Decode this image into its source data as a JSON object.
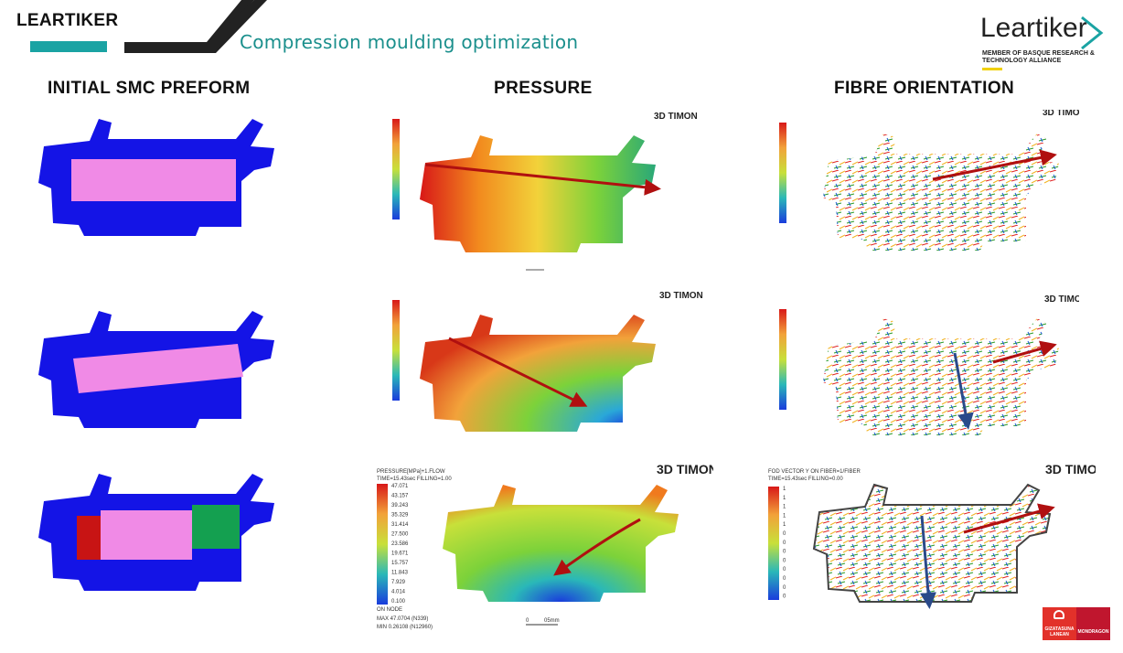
{
  "header": {
    "brand": "LEARTIKER",
    "subtitle": "Compression moulding optimization",
    "logo_word": "Leartiker",
    "logo_tagline": "MEMBER OF BASQUE RESEARCH & TECHNOLOGY ALLIANCE",
    "accent_color": "#1aa3a3"
  },
  "columns": {
    "preform": "INITIAL SMC PREFORM",
    "pressure": "PRESSURE",
    "fibre": "FIBRE ORIENTATION"
  },
  "simulation": {
    "watermark": "3D TIMON",
    "pressure_title": "PRESSURE[MPa]+1.FLOW",
    "pressure_time": "TIME=15.43sec FILLING=1.00",
    "fibre_title": "FOD VECTOR Y ON FIBER=1/FIBER",
    "fibre_time": "TIME=15.43sec FILLING=0.00",
    "scale_values": [
      "47.071",
      "43.157",
      "39.243",
      "35.329",
      "31.414",
      "27.500",
      "23.586",
      "19.671",
      "15.757",
      "11.843",
      "7.929",
      "4.014",
      "0.100"
    ],
    "fibre_scale_values": [
      "1",
      "1",
      "1",
      "1",
      "1",
      "0",
      "0",
      "0",
      "0",
      "0",
      "0",
      "0",
      "0"
    ],
    "node_label": "ON NODE",
    "max_label": "MAX 47.0704 (N339)",
    "min_label": "MIN 0.26108 (N12960)",
    "scale_bar": "05mm",
    "scale_zero": "0"
  },
  "footer": {
    "left_line1": "GIZATASUNA",
    "left_line2": "LANEAN",
    "right_text": "MONDRAGON"
  }
}
